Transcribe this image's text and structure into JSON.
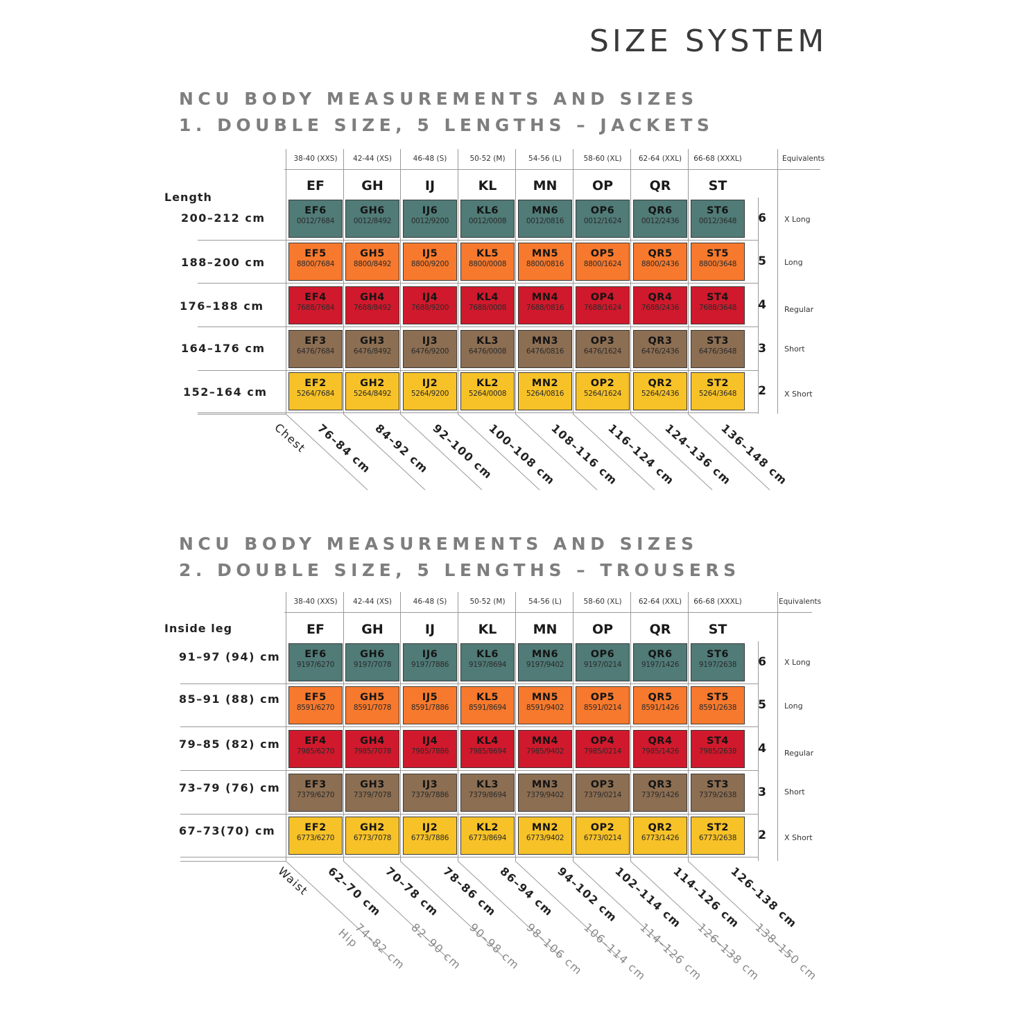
{
  "page_title": "SIZE SYSTEM",
  "colors": {
    "length_6": "#507b77",
    "length_5": "#f7792d",
    "length_4": "#d0192c",
    "length_3": "#8c6e52",
    "length_2": "#f7c228"
  },
  "european_sizes": [
    "38-40 (XXS)",
    "42-44 (XS)",
    "46-48 (S)",
    "50-52 (M)",
    "54-56 (L)",
    "58-60 (XL)",
    "62-64 (XXL)",
    "66-68 (XXXL)"
  ],
  "column_codes": [
    "EF",
    "GH",
    "IJ",
    "KL",
    "MN",
    "OP",
    "QR",
    "ST"
  ],
  "equivalents_label": "Equivalents",
  "lengths": [
    {
      "num": "6",
      "equivalent": "X Long"
    },
    {
      "num": "5",
      "equivalent": "Long"
    },
    {
      "num": "4",
      "equivalent": "Regular"
    },
    {
      "num": "3",
      "equivalent": "Short"
    },
    {
      "num": "2",
      "equivalent": "X Short"
    }
  ],
  "jackets": {
    "heading_1": "NCU BODY MEASUREMENTS AND SIZES",
    "heading_2": "1. DOUBLE SIZE, 5 LENGTHS – JACKETS",
    "row_axis_title": "Length",
    "row_labels": [
      "200–212 cm",
      "188–200 cm",
      "176–188 cm",
      "164–176 cm",
      "152–164 cm"
    ],
    "bottom_axis_title": "Chest",
    "bottom_ranges": [
      "76–84 cm",
      "84–92 cm",
      "92–100 cm",
      "100–108 cm",
      "108–116 cm",
      "116–124 cm",
      "124–136 cm",
      "136–148 cm"
    ],
    "cells": [
      [
        [
          "EF6",
          "0012/7684"
        ],
        [
          "GH6",
          "0012/8492"
        ],
        [
          "IJ6",
          "0012/9200"
        ],
        [
          "KL6",
          "0012/0008"
        ],
        [
          "MN6",
          "0012/0816"
        ],
        [
          "OP6",
          "0012/1624"
        ],
        [
          "QR6",
          "0012/2436"
        ],
        [
          "ST6",
          "0012/3648"
        ]
      ],
      [
        [
          "EF5",
          "8800/7684"
        ],
        [
          "GH5",
          "8800/8492"
        ],
        [
          "IJ5",
          "8800/9200"
        ],
        [
          "KL5",
          "8800/0008"
        ],
        [
          "MN5",
          "8800/0816"
        ],
        [
          "OP5",
          "8800/1624"
        ],
        [
          "QR5",
          "8800/2436"
        ],
        [
          "ST5",
          "8800/3648"
        ]
      ],
      [
        [
          "EF4",
          "7688/7684"
        ],
        [
          "GH4",
          "7688/8492"
        ],
        [
          "IJ4",
          "7688/9200"
        ],
        [
          "KL4",
          "7688/0008"
        ],
        [
          "MN4",
          "7688/0816"
        ],
        [
          "OP4",
          "7688/1624"
        ],
        [
          "QR4",
          "7688/2436"
        ],
        [
          "ST4",
          "7688/3648"
        ]
      ],
      [
        [
          "EF3",
          "6476/7684"
        ],
        [
          "GH3",
          "6476/8492"
        ],
        [
          "IJ3",
          "6476/9200"
        ],
        [
          "KL3",
          "6476/0008"
        ],
        [
          "MN3",
          "6476/0816"
        ],
        [
          "OP3",
          "6476/1624"
        ],
        [
          "QR3",
          "6476/2436"
        ],
        [
          "ST3",
          "6476/3648"
        ]
      ],
      [
        [
          "EF2",
          "5264/7684"
        ],
        [
          "GH2",
          "5264/8492"
        ],
        [
          "IJ2",
          "5264/9200"
        ],
        [
          "KL2",
          "5264/0008"
        ],
        [
          "MN2",
          "5264/0816"
        ],
        [
          "OP2",
          "5264/1624"
        ],
        [
          "QR2",
          "5264/2436"
        ],
        [
          "ST2",
          "5264/3648"
        ]
      ]
    ]
  },
  "trousers": {
    "heading_1": "NCU BODY MEASUREMENTS AND SIZES",
    "heading_2": "2. DOUBLE SIZE, 5 LENGTHS – TROUSERS",
    "row_axis_title": "Inside leg",
    "row_labels": [
      "91–97 (94) cm",
      "85–91 (88) cm",
      "79–85 (82) cm",
      "73–79 (76) cm",
      "67–73(70) cm"
    ],
    "bottom_axis_title": "Waist",
    "bottom_ranges": [
      "62–70 cm",
      "70–78 cm",
      "78–86 cm",
      "86–94 cm",
      "94–102 cm",
      "102–114 cm",
      "114–126 cm",
      "126–138 cm"
    ],
    "second_axis_title": "Hip",
    "second_ranges": [
      "74–82 cm",
      "82–90 cm",
      "90–98 cm",
      "98–106 cm",
      "106–114 cm",
      "114–126 cm",
      "126–138 cm",
      "138–150 cm"
    ],
    "cells": [
      [
        [
          "EF6",
          "9197/6270"
        ],
        [
          "GH6",
          "9197/7078"
        ],
        [
          "IJ6",
          "9197/7886"
        ],
        [
          "KL6",
          "9197/8694"
        ],
        [
          "MN6",
          "9197/9402"
        ],
        [
          "OP6",
          "9197/0214"
        ],
        [
          "QR6",
          "9197/1426"
        ],
        [
          "ST6",
          "9197/2638"
        ]
      ],
      [
        [
          "EF5",
          "8591/6270"
        ],
        [
          "GH5",
          "8591/7078"
        ],
        [
          "IJ5",
          "8591/7886"
        ],
        [
          "KL5",
          "8591/8694"
        ],
        [
          "MN5",
          "8591/9402"
        ],
        [
          "OP5",
          "8591/0214"
        ],
        [
          "QR5",
          "8591/1426"
        ],
        [
          "ST5",
          "8591/2638"
        ]
      ],
      [
        [
          "EF4",
          "7985/6270"
        ],
        [
          "GH4",
          "7985/7078"
        ],
        [
          "IJ4",
          "7985/7886"
        ],
        [
          "KL4",
          "7985/8694"
        ],
        [
          "MN4",
          "7985/9402"
        ],
        [
          "OP4",
          "7985/0214"
        ],
        [
          "QR4",
          "7985/1426"
        ],
        [
          "ST4",
          "7985/2638"
        ]
      ],
      [
        [
          "EF3",
          "7379/6270"
        ],
        [
          "GH3",
          "7379/7078"
        ],
        [
          "IJ3",
          "7379/7886"
        ],
        [
          "KL3",
          "7379/8694"
        ],
        [
          "MN3",
          "7379/9402"
        ],
        [
          "OP3",
          "7379/0214"
        ],
        [
          "QR3",
          "7379/1426"
        ],
        [
          "ST3",
          "7379/2638"
        ]
      ],
      [
        [
          "EF2",
          "6773/6270"
        ],
        [
          "GH2",
          "6773/7078"
        ],
        [
          "IJ2",
          "6773/7886"
        ],
        [
          "KL2",
          "6773/8694"
        ],
        [
          "MN2",
          "6773/9402"
        ],
        [
          "OP2",
          "6773/0214"
        ],
        [
          "QR2",
          "6773/1426"
        ],
        [
          "ST2",
          "6773/2638"
        ]
      ]
    ]
  }
}
